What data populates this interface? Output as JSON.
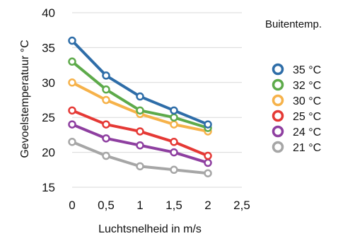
{
  "chart_data": {
    "type": "line",
    "title": "",
    "xlabel": "Luchtsnelheid in m/s",
    "ylabel": "Gevoelstemperatuur °C",
    "xlim": [
      0,
      2.5
    ],
    "ylim": [
      15,
      40
    ],
    "x_ticks": [
      "0",
      "0,5",
      "1",
      "1,5",
      "2",
      "2,5"
    ],
    "y_ticks": [
      "15",
      "20",
      "25",
      "30",
      "35",
      "40"
    ],
    "grid": "horizontal",
    "legend": {
      "title": "Buitentemp.",
      "position": "right"
    },
    "x": [
      0,
      0.5,
      1,
      1.5,
      2
    ],
    "series": [
      {
        "name": "35 °C",
        "color": "#2E6DA8",
        "values": [
          36,
          31,
          28,
          26,
          24
        ]
      },
      {
        "name": "32 °C",
        "color": "#5DAA4A",
        "values": [
          33,
          29,
          26,
          25,
          23.5
        ]
      },
      {
        "name": "30 °C",
        "color": "#F6B24A",
        "values": [
          30,
          27.5,
          25.5,
          24,
          23
        ]
      },
      {
        "name": "25 °C",
        "color": "#E53935",
        "values": [
          26,
          24,
          23,
          21.5,
          19.5
        ]
      },
      {
        "name": "24 °C",
        "color": "#8E3FA0",
        "values": [
          24,
          22,
          21,
          20,
          18.5
        ]
      },
      {
        "name": "21 °C",
        "color": "#A6A6A6",
        "values": [
          21.5,
          19.5,
          18,
          17.5,
          17
        ]
      }
    ]
  }
}
